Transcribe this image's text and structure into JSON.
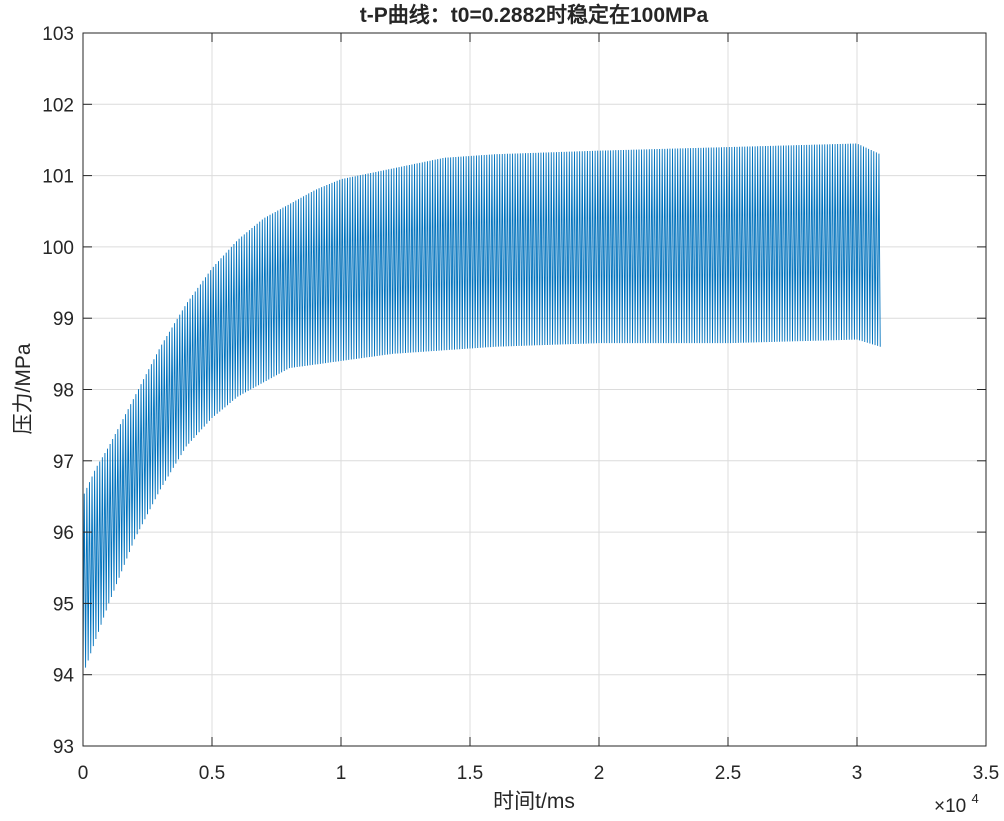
{
  "chart_data": {
    "type": "line",
    "title": "t-P曲线：t0=0.2882时稳定在100MPa",
    "xlabel": "时间t/ms",
    "ylabel": "压力/MPa",
    "x_multiplier_text": "×10",
    "x_multiplier_exponent": "4",
    "xlim": [
      0,
      35000
    ],
    "ylim": [
      93,
      103
    ],
    "x_ticks": [
      0,
      5000,
      10000,
      15000,
      20000,
      25000,
      30000,
      35000
    ],
    "x_tick_labels": [
      "0",
      "0.5",
      "1",
      "1.5",
      "2",
      "2.5",
      "3",
      "3.5"
    ],
    "y_ticks": [
      93,
      94,
      95,
      96,
      97,
      98,
      99,
      100,
      101,
      102,
      103
    ],
    "y_tick_labels": [
      "93",
      "94",
      "95",
      "96",
      "97",
      "98",
      "99",
      "100",
      "101",
      "102",
      "103"
    ],
    "grid": true,
    "series": [
      {
        "color": "#0072BD",
        "x_start": 0,
        "x_end": 30900,
        "oscillation_period": 100,
        "upper_envelope": [
          [
            0,
            96.5
          ],
          [
            500,
            96.9
          ],
          [
            1000,
            97.2
          ],
          [
            2000,
            97.9
          ],
          [
            3000,
            98.6
          ],
          [
            4000,
            99.2
          ],
          [
            5000,
            99.7
          ],
          [
            6000,
            100.1
          ],
          [
            7000,
            100.4
          ],
          [
            8000,
            100.6
          ],
          [
            9000,
            100.8
          ],
          [
            10000,
            100.95
          ],
          [
            12000,
            101.1
          ],
          [
            14000,
            101.25
          ],
          [
            16000,
            101.3
          ],
          [
            20000,
            101.35
          ],
          [
            25000,
            101.4
          ],
          [
            30000,
            101.45
          ],
          [
            30900,
            101.3
          ]
        ],
        "lower_envelope": [
          [
            0,
            94.0
          ],
          [
            500,
            94.5
          ],
          [
            1000,
            95.0
          ],
          [
            2000,
            95.9
          ],
          [
            3000,
            96.6
          ],
          [
            4000,
            97.2
          ],
          [
            5000,
            97.6
          ],
          [
            6000,
            97.9
          ],
          [
            7000,
            98.1
          ],
          [
            8000,
            98.3
          ],
          [
            9000,
            98.35
          ],
          [
            10000,
            98.4
          ],
          [
            12000,
            98.5
          ],
          [
            14000,
            98.55
          ],
          [
            16000,
            98.6
          ],
          [
            20000,
            98.65
          ],
          [
            25000,
            98.65
          ],
          [
            30000,
            98.7
          ],
          [
            30900,
            98.6
          ]
        ]
      }
    ]
  }
}
